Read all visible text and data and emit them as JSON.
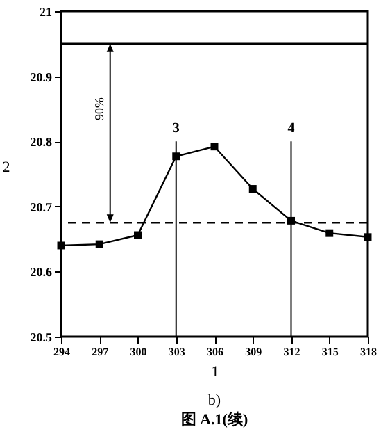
{
  "chart_data": {
    "type": "line",
    "title": "b)",
    "subtitle": "图 A.1(续)",
    "xlabel": "1",
    "ylabel": "2",
    "x": [
      294,
      297,
      300,
      303,
      306,
      309,
      312,
      315,
      318
    ],
    "series": [
      {
        "color": "#000000",
        "values": [
          20.64,
          20.642,
          20.656,
          20.777,
          20.792,
          20.727,
          20.678,
          20.659,
          20.653
        ]
      }
    ],
    "xlim": [
      294,
      318
    ],
    "xticks": [
      294,
      297,
      300,
      303,
      306,
      309,
      312,
      315,
      318
    ],
    "ylim": [
      20.5,
      21
    ],
    "yticks": [
      20.5,
      20.6,
      20.7,
      20.8,
      20.9,
      21
    ],
    "ref_lines": [
      {
        "axis": "y",
        "value": 20.95,
        "line_style": "solid"
      },
      {
        "axis": "y",
        "value": 20.675,
        "line_style": "dashed"
      },
      {
        "axis": "x",
        "value": 303
      },
      {
        "axis": "x",
        "value": 312
      }
    ],
    "annotations": [
      "90%",
      {
        "text": "3",
        "x": 303,
        "y": 20.81
      },
      {
        "text": "4",
        "x": 312,
        "y": 20.81
      }
    ],
    "marker": "square",
    "line_style": "solid"
  }
}
